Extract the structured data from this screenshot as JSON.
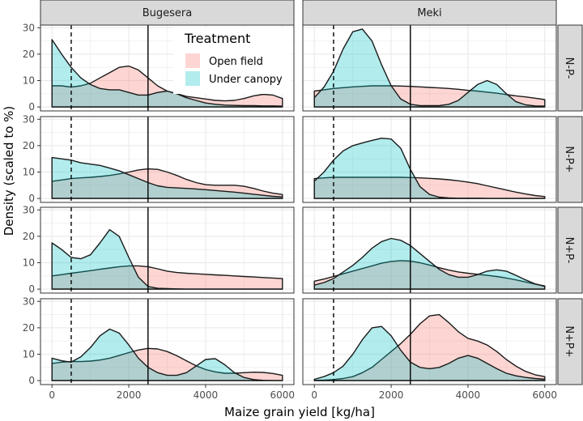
{
  "chart_data": {
    "type": "area",
    "subtype": "faceted density",
    "xlabel": "Maize grain yield [kg/ha]",
    "ylabel": "Density (scaled to %)",
    "x_ticks": [
      0,
      2000,
      4000,
      6000
    ],
    "y_ticks": [
      0,
      10,
      20,
      30
    ],
    "xlim": [
      -300,
      6300
    ],
    "ylim": [
      -1.5,
      31
    ],
    "grid": true,
    "columns": [
      "Bugesera",
      "Meki"
    ],
    "rows": [
      "N-P-",
      "N-P+",
      "N+P-",
      "N+P+"
    ],
    "vlines": [
      {
        "x": 500,
        "style": "dashed"
      },
      {
        "x": 2500,
        "style": "solid"
      }
    ],
    "legend": {
      "title": "Treatment",
      "position": "top-right of first panel",
      "entries": [
        {
          "label": "Open field",
          "color": "#f8766d"
        },
        {
          "label": "Under canopy",
          "color": "#00bfc4"
        }
      ]
    },
    "colors": {
      "open_field": "#f8766d",
      "under_canopy": "#00bfc4",
      "strip_background": "#d9d9d9",
      "grid": "#ebebeb"
    },
    "x": [
      0,
      250,
      500,
      750,
      1000,
      1250,
      1500,
      1750,
      2000,
      2250,
      2500,
      2750,
      3000,
      3250,
      3500,
      3750,
      4000,
      4250,
      4500,
      4750,
      5000,
      5250,
      5500,
      5750,
      6000
    ],
    "panels": [
      {
        "col": "Bugesera",
        "row": "N-P-",
        "open_field": [
          8,
          8,
          7.5,
          8,
          9,
          11,
          13,
          15,
          15.5,
          14,
          11,
          8,
          6,
          5,
          4,
          3.5,
          3,
          2.5,
          2.3,
          2.5,
          3.2,
          4.2,
          4.8,
          4.5,
          3.2
        ],
        "under_canopy": [
          25.5,
          20,
          15,
          11,
          8.5,
          7,
          6.5,
          6.5,
          5.5,
          4.5,
          4.5,
          5.5,
          6,
          5,
          3.5,
          2.5,
          1.5,
          1,
          0.7,
          0.6,
          0.5,
          0.5,
          0.4,
          0.4,
          0.3
        ]
      },
      {
        "col": "Meki",
        "row": "N-P-",
        "open_field": [
          6,
          6.5,
          7,
          7.3,
          7.6,
          7.8,
          8,
          8,
          8,
          7.9,
          7.8,
          7.6,
          7.4,
          7.2,
          7,
          6.7,
          6.3,
          6,
          5.6,
          5.2,
          4.7,
          4.2,
          3.8,
          3.3,
          2.8
        ],
        "under_canopy": [
          3.5,
          7.5,
          13.5,
          22,
          28.5,
          29.5,
          25,
          16,
          8,
          3,
          1,
          0.5,
          0.5,
          0.5,
          1,
          2.5,
          5.5,
          8.5,
          10,
          8.5,
          5,
          2,
          0.8,
          0.4,
          0.3
        ]
      },
      {
        "col": "Bugesera",
        "row": "N-P+",
        "open_field": [
          6.5,
          7,
          7.5,
          7.8,
          8,
          8.3,
          8.7,
          9.3,
          10,
          10.8,
          11.2,
          11,
          10,
          8.7,
          7.2,
          6,
          5.2,
          5,
          5,
          5,
          4.6,
          3.8,
          2.8,
          2,
          1.5
        ],
        "under_canopy": [
          15.5,
          15,
          14.5,
          13.5,
          13,
          12.5,
          11.5,
          10.5,
          9,
          7.5,
          6,
          4.8,
          4.2,
          4,
          3.8,
          3.6,
          3.3,
          3,
          2.7,
          2.4,
          2,
          1.6,
          1.2,
          0.8,
          0.6
        ]
      },
      {
        "col": "Meki",
        "row": "N-P+",
        "open_field": [
          7.5,
          7.8,
          8,
          8,
          8,
          8,
          8,
          8,
          8,
          8,
          7.9,
          7.8,
          7.6,
          7.4,
          7.1,
          6.7,
          6.2,
          5.6,
          4.8,
          4,
          3.2,
          2.4,
          1.7,
          1.1,
          0.7
        ],
        "under_canopy": [
          6.5,
          10,
          14.5,
          18,
          20,
          21,
          22,
          22.8,
          22.5,
          19,
          11,
          4.5,
          1.5,
          0.5,
          0.2,
          0.1,
          0.1,
          0.1,
          0,
          0,
          0,
          0,
          0,
          0,
          0
        ]
      },
      {
        "col": "Bugesera",
        "row": "N+P-",
        "open_field": [
          5,
          5.5,
          6,
          6.5,
          7,
          7.5,
          8,
          8.5,
          8.8,
          8.8,
          8.5,
          7.7,
          6.8,
          6.3,
          6,
          5.8,
          5.6,
          5.4,
          5.2,
          5,
          4.8,
          4.6,
          4.4,
          4.2,
          4
        ],
        "under_canopy": [
          17.5,
          15,
          12,
          11.5,
          13,
          17.5,
          22.5,
          20,
          12,
          4.5,
          1,
          0.3,
          0.2,
          0.1,
          0,
          0,
          0,
          0,
          0,
          0,
          0,
          0,
          0,
          0,
          0
        ]
      },
      {
        "col": "Meki",
        "row": "N+P-",
        "open_field": [
          3,
          3.8,
          4.8,
          5.8,
          6.8,
          7.8,
          8.8,
          9.8,
          10.5,
          10.8,
          10.6,
          10,
          9.1,
          8.1,
          7.2,
          6.5,
          6,
          5.6,
          5.2,
          4.8,
          4.2,
          3.5,
          2.7,
          1.9,
          1.2
        ],
        "under_canopy": [
          1.5,
          2.5,
          4,
          6.5,
          9,
          12,
          15.5,
          18,
          19.2,
          18.5,
          16.5,
          13.5,
          10.5,
          7.5,
          5.5,
          4.5,
          4.5,
          5.5,
          6.8,
          7.3,
          6.8,
          5.2,
          3.5,
          2,
          1
        ]
      },
      {
        "col": "Bugesera",
        "row": "N+P+",
        "open_field": [
          6.5,
          7,
          7.2,
          7.2,
          7.4,
          7.8,
          8.5,
          9.5,
          10.6,
          11.6,
          12.2,
          12,
          11,
          9.4,
          7.5,
          5.6,
          4.2,
          3.3,
          2.8,
          2.8,
          3,
          3.2,
          3.1,
          2.7,
          2
        ],
        "under_canopy": [
          8.5,
          7.5,
          7,
          9,
          12.5,
          17,
          19.5,
          18,
          13.5,
          8.5,
          5,
          3,
          2,
          2,
          3,
          5.5,
          8,
          8.3,
          6,
          3,
          1.2,
          0.4,
          0.1,
          0,
          0
        ]
      },
      {
        "col": "Meki",
        "row": "N+P+",
        "open_field": [
          0.1,
          0.2,
          0.4,
          0.8,
          1.5,
          3,
          5,
          8,
          11,
          14,
          17.5,
          21.5,
          24.5,
          25,
          22,
          18.5,
          16,
          15,
          13.5,
          11,
          8,
          5.5,
          3.5,
          2.2,
          1.5
        ],
        "under_canopy": [
          0.5,
          1.5,
          3,
          5.5,
          10,
          15.5,
          20,
          20.5,
          17,
          11.5,
          7,
          5,
          4.5,
          5,
          6.5,
          8.5,
          9.5,
          8.5,
          6.5,
          4.5,
          2.8,
          1.8,
          1.2,
          0.8,
          0.5
        ]
      }
    ]
  }
}
